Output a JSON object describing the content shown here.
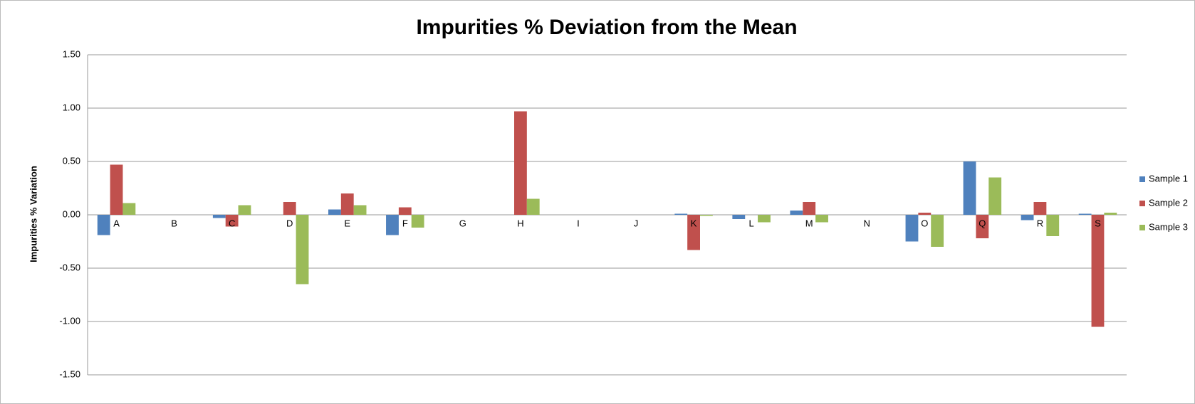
{
  "chart_data": {
    "type": "bar",
    "title": "Impurities % Deviation from the Mean",
    "y_label": "Impurities % Variation",
    "categories": [
      "A",
      "B",
      "C",
      "D",
      "E",
      "F",
      "G",
      "H",
      "I",
      "J",
      "K",
      "L",
      "M",
      "N",
      "O",
      "Q",
      "R",
      "S"
    ],
    "series": [
      {
        "name": "Sample 1",
        "color": "#4f81bd",
        "values": [
          -0.19,
          0,
          -0.03,
          0,
          0.05,
          -0.19,
          0,
          0,
          0,
          0,
          0.01,
          -0.04,
          0.04,
          0,
          -0.25,
          0.5,
          -0.05,
          0.01
        ]
      },
      {
        "name": "Sample 2",
        "color": "#c0504d",
        "values": [
          0.47,
          0,
          -0.11,
          0.12,
          0.2,
          0.07,
          0,
          0.97,
          0,
          0,
          -0.33,
          0,
          0.12,
          0,
          0.02,
          -0.22,
          0.12,
          -1.05
        ]
      },
      {
        "name": "Sample 3",
        "color": "#9bbb59",
        "values": [
          0.11,
          0,
          0.09,
          -0.65,
          0.09,
          -0.12,
          0,
          0.15,
          0,
          0,
          -0.01,
          -0.07,
          -0.07,
          0,
          -0.3,
          0.35,
          -0.2,
          0.02
        ]
      }
    ],
    "ylim": [
      -1.5,
      1.5
    ],
    "yticks": [
      {
        "value": -1.5,
        "label": "-1.50"
      },
      {
        "value": -1,
        "label": "-1.00"
      },
      {
        "value": -0.5,
        "label": "-0.50"
      },
      {
        "value": 0,
        "label": "0.00"
      },
      {
        "value": 0.5,
        "label": "0.50"
      },
      {
        "value": 1,
        "label": "1.00"
      },
      {
        "value": 1.5,
        "label": "1.50"
      }
    ],
    "grid": true,
    "legend": "right"
  }
}
